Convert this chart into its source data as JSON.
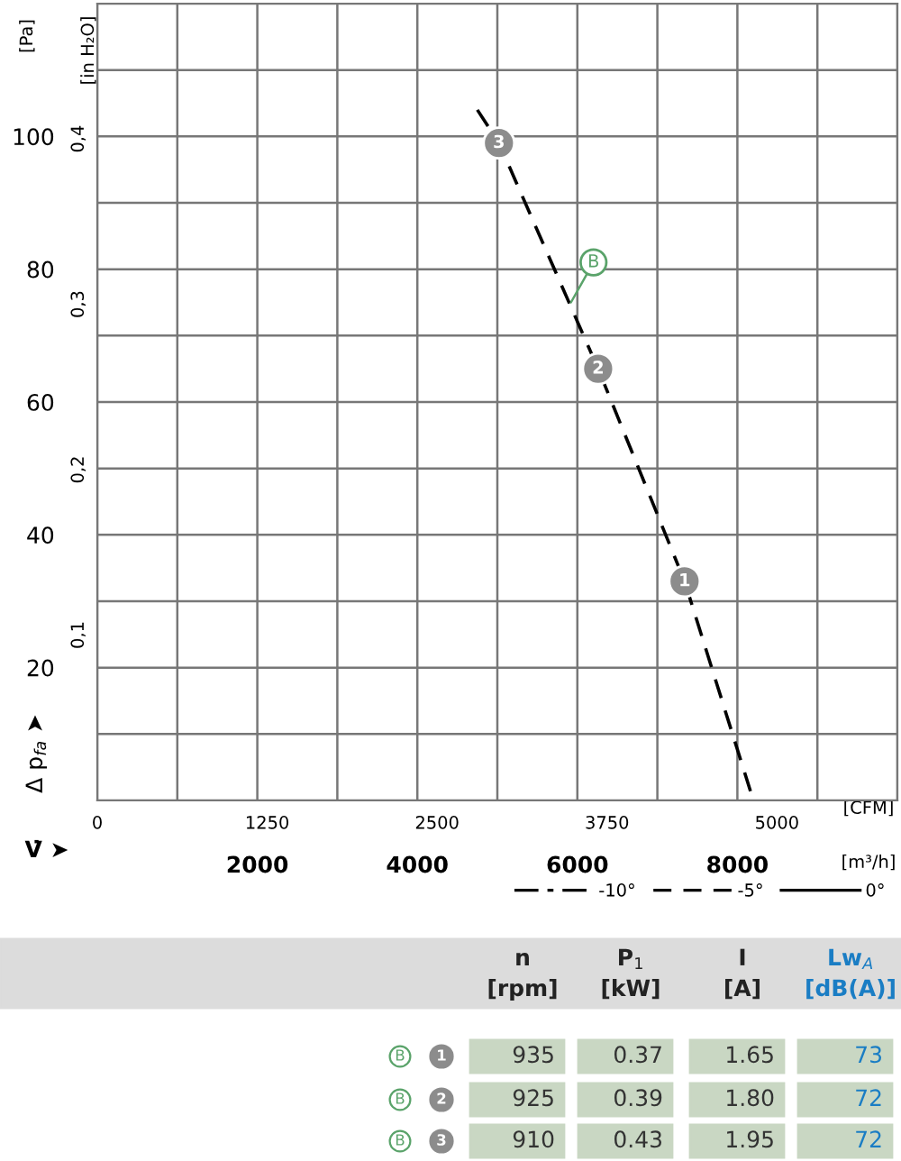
{
  "chart_data": [
    {
      "type": "line",
      "ylabel": "[Pa]",
      "y2label": "[in H₂O]",
      "xlabel": "[m³/h]",
      "x2label": "[CFM]",
      "xlim": [
        0,
        10000
      ],
      "xticks": [
        {
          "value": 0,
          "label": null
        },
        {
          "value": 1000,
          "label": null
        },
        2000,
        {
          "value": 3000,
          "label": null
        },
        4000,
        {
          "value": 5000,
          "label": null
        },
        6000,
        {
          "value": 7000,
          "label": null
        },
        8000,
        {
          "value": 9000,
          "label": null
        },
        {
          "value": 10000,
          "label": null
        }
      ],
      "x2lim": [
        0,
        5886
      ],
      "x2ticks": [
        0,
        1250,
        2500,
        3750,
        5000
      ],
      "ylim": [
        0,
        120
      ],
      "yticks": [
        {
          "value": 0,
          "label": null
        },
        {
          "value": 10,
          "label": null
        },
        20,
        {
          "value": 30,
          "label": null
        },
        40,
        {
          "value": 50,
          "label": null
        },
        60,
        {
          "value": 70,
          "label": null
        },
        80,
        {
          "value": 90,
          "label": null
        },
        100,
        {
          "value": 110,
          "label": null
        },
        {
          "value": 120,
          "label": null
        }
      ],
      "y2lim": [
        0,
        0.4818
      ],
      "y2ticks": [
        {
          "value": 0.1,
          "label": "0,1"
        },
        {
          "value": 0.2,
          "label": "0,2"
        },
        {
          "value": 0.3,
          "label": "0,3"
        },
        {
          "value": 0.4,
          "label": "0,4"
        }
      ],
      "grid": true,
      "legend": "bottom right",
      "series": [
        {
          "name": "-10°",
          "type": "line",
          "color": "#000000",
          "line_style": "dashdot"
        },
        {
          "name": "-5°",
          "color": "#000000",
          "line_style": "dashed",
          "x": [
            4750,
            5020,
            6260,
            7340,
            8200
          ],
          "values": [
            104,
            99,
            65,
            33,
            0
          ]
        },
        {
          "name": "0°",
          "type": "line",
          "color": "#000000",
          "line_style": "solid"
        },
        {
          "type": "scatter",
          "color": "#8c8c8c",
          "marker": "circle",
          "x": [
            7340,
            6260,
            5020
          ],
          "values": [
            33,
            65,
            99
          ]
        }
      ],
      "annotations": [
        {
          "text": "1",
          "x": 7340,
          "y": 33
        },
        {
          "text": "2",
          "x": 6260,
          "y": 65
        },
        {
          "text": "3",
          "x": 5020,
          "y": 99
        },
        {
          "text": "B",
          "x": 5920,
          "y": 75
        },
        "Δ p$_{fa}$ ➤",
        "V̇ ➤"
      ]
    },
    {
      "type": "other",
      "categories": [
        "n\n[rpm]",
        "P$_{1}$\n[kW]",
        "I\n[A]",
        "Lw$_{A}$\n[dB(A)]"
      ],
      "y_categories": [
        "B 1",
        "B 2",
        "B 3"
      ],
      "cell_labels": [
        [
          "935",
          "0.37",
          "1.65",
          "73"
        ],
        [
          "925",
          "0.39",
          "1.80",
          "72"
        ],
        [
          "910",
          "0.43",
          "1.95",
          "72"
        ]
      ]
    }
  ]
}
